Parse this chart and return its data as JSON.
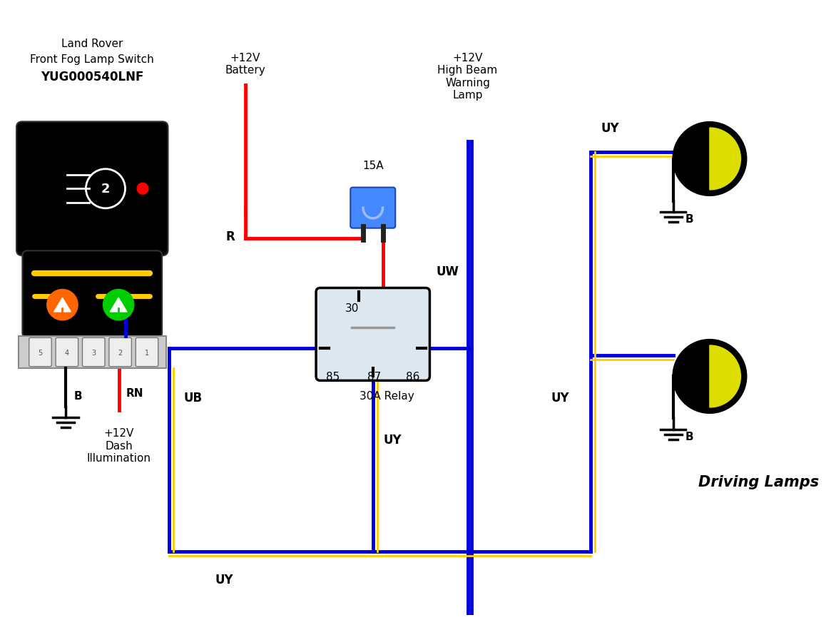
{
  "bg_color": "#ffffff",
  "switch_label1": "Land Rover",
  "switch_label2": "Front Fog Lamp Switch",
  "switch_label3": "YUG000540LNF",
  "relay_label": "30A Relay",
  "fuse_label": "15A",
  "battery_label": "+12V\nBattery",
  "highbeam_label": "+12V\nHigh Beam\nWarning\nLamp",
  "dash_label": "+12V\nDash\nIllumination",
  "driving_lamps_label": "Driving Lamps",
  "wire_R": "R",
  "wire_UB": "UB",
  "wire_UY": "UY",
  "wire_UW": "UW",
  "wire_RN": "RN",
  "wire_B": "B",
  "pin30": "30",
  "pin85": "85",
  "pin87": "87",
  "pin86": "86",
  "color_red": "#ff0000",
  "color_blue": "#0000dd",
  "color_yellow": "#ffcc00",
  "color_black": "#000000",
  "color_relay_bg": "#dde8f0",
  "color_fuse_bg": "#4488ff",
  "color_lamp_yellow": "#dddd00",
  "color_indicator_orange": "#ff6600",
  "color_indicator_green": "#00cc00",
  "lw_wire": 3.5,
  "lw_yellow": 2.0
}
